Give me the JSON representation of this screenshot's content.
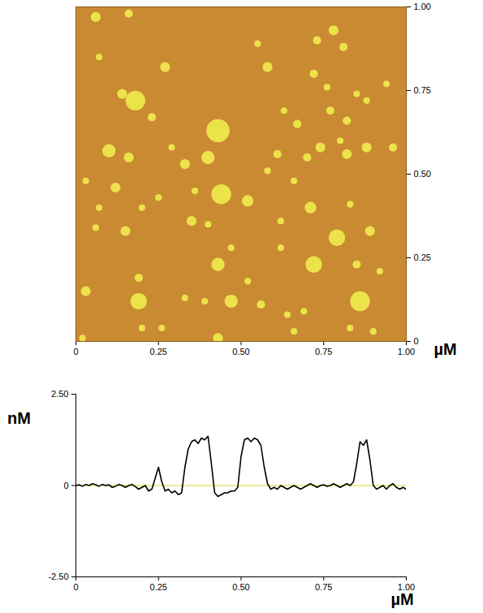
{
  "chart_data": [
    {
      "type": "scatter",
      "x_label": "µM",
      "color": "#ece24a",
      "xlim": [
        0,
        1
      ],
      "ylim": [
        0,
        1
      ],
      "xticks": [
        0,
        0.25,
        {
          "value": 0.5,
          "label": "0.50"
        },
        0.75,
        {
          "value": 1,
          "label": "1.00"
        }
      ],
      "yticks": [
        0,
        0.25,
        {
          "value": 0.5,
          "label": "0.50"
        },
        0.75,
        {
          "value": 1,
          "label": "1.00"
        }
      ],
      "x": [
        0.06,
        0.16,
        0.07,
        0.18,
        0.14,
        0.27,
        0.23,
        0.43,
        0.58,
        0.55,
        0.73,
        0.78,
        0.81,
        0.72,
        0.76,
        0.85,
        0.88,
        0.77,
        0.82,
        0.8,
        0.67,
        0.63,
        0.94,
        0.96,
        0.88,
        0.82,
        0.74,
        0.61,
        0.58,
        0.7,
        0.66,
        0.44,
        0.4,
        0.33,
        0.36,
        0.52,
        0.29,
        0.1,
        0.16,
        0.12,
        0.03,
        0.07,
        0.2,
        0.25,
        0.35,
        0.4,
        0.15,
        0.06,
        0.71,
        0.62,
        0.79,
        0.89,
        0.83,
        0.72,
        0.62,
        0.47,
        0.43,
        0.52,
        0.56,
        0.47,
        0.19,
        0.19,
        0.03,
        0.33,
        0.39,
        0.86,
        0.85,
        0.92,
        0.64,
        0.69,
        0.2,
        0.26,
        0.43,
        0.02,
        0.66,
        0.83,
        0.9
      ],
      "y": [
        0.97,
        0.98,
        0.85,
        0.72,
        0.74,
        0.82,
        0.67,
        0.63,
        0.82,
        0.89,
        0.9,
        0.93,
        0.88,
        0.8,
        0.76,
        0.74,
        0.72,
        0.69,
        0.66,
        0.6,
        0.65,
        0.69,
        0.77,
        0.58,
        0.58,
        0.56,
        0.58,
        0.56,
        0.51,
        0.55,
        0.48,
        0.44,
        0.55,
        0.53,
        0.45,
        0.42,
        0.58,
        0.57,
        0.55,
        0.46,
        0.48,
        0.4,
        0.4,
        0.43,
        0.36,
        0.35,
        0.33,
        0.34,
        0.4,
        0.36,
        0.31,
        0.33,
        0.41,
        0.23,
        0.28,
        0.28,
        0.23,
        0.18,
        0.11,
        0.12,
        0.12,
        0.19,
        0.15,
        0.13,
        0.12,
        0.12,
        0.23,
        0.21,
        0.08,
        0.09,
        0.04,
        0.04,
        0.01,
        0.01,
        0.03,
        0.04,
        0.03
      ],
      "sizes": [
        0.03,
        0.025,
        0.02,
        0.06,
        0.03,
        0.03,
        0.025,
        0.07,
        0.03,
        0.02,
        0.025,
        0.03,
        0.025,
        0.025,
        0.02,
        0.02,
        0.02,
        0.025,
        0.025,
        0.02,
        0.025,
        0.02,
        0.02,
        0.025,
        0.03,
        0.03,
        0.03,
        0.025,
        0.02,
        0.025,
        0.02,
        0.06,
        0.04,
        0.03,
        0.02,
        0.035,
        0.02,
        0.04,
        0.03,
        0.03,
        0.02,
        0.02,
        0.02,
        0.02,
        0.03,
        0.02,
        0.03,
        0.02,
        0.035,
        0.02,
        0.05,
        0.03,
        0.02,
        0.05,
        0.02,
        0.02,
        0.04,
        0.02,
        0.025,
        0.04,
        0.05,
        0.025,
        0.03,
        0.02,
        0.02,
        0.06,
        0.025,
        0.02,
        0.02,
        0.02,
        0.02,
        0.02,
        0.03,
        0.02,
        0.02,
        0.02,
        0.02
      ]
    },
    {
      "type": "line",
      "x_label": "µM",
      "y_label": "nM",
      "color": "#000000",
      "xlim": [
        0,
        1
      ],
      "ylim": [
        -2.5,
        2.5
      ],
      "xticks": [
        0,
        0.25,
        {
          "value": 0.5,
          "label": "0.50"
        },
        0.75,
        {
          "value": 1,
          "label": "1.00"
        }
      ],
      "yticks": [
        {
          "value": -2.5,
          "label": "-2.50"
        },
        0,
        {
          "value": 2.5,
          "label": "2.50"
        }
      ],
      "reference_line": {
        "value": 0,
        "color": "#e6e66a"
      },
      "x": [
        0,
        0.01,
        0.02,
        0.03,
        0.04,
        0.05,
        0.06,
        0.07,
        0.08,
        0.09,
        0.1,
        0.11,
        0.12,
        0.13,
        0.14,
        0.15,
        0.16,
        0.17,
        0.18,
        0.19,
        0.2,
        0.21,
        0.22,
        0.23,
        0.24,
        0.25,
        0.26,
        0.27,
        0.28,
        0.29,
        0.3,
        0.31,
        0.32,
        0.33,
        0.34,
        0.35,
        0.36,
        0.37,
        0.38,
        0.39,
        0.4,
        0.41,
        0.42,
        0.43,
        0.44,
        0.45,
        0.46,
        0.47,
        0.48,
        0.49,
        0.5,
        0.51,
        0.52,
        0.53,
        0.54,
        0.55,
        0.56,
        0.57,
        0.58,
        0.59,
        0.6,
        0.61,
        0.62,
        0.63,
        0.64,
        0.65,
        0.66,
        0.67,
        0.68,
        0.69,
        0.7,
        0.71,
        0.72,
        0.73,
        0.74,
        0.75,
        0.76,
        0.77,
        0.78,
        0.79,
        0.8,
        0.81,
        0.82,
        0.83,
        0.84,
        0.85,
        0.86,
        0.87,
        0.88,
        0.89,
        0.9,
        0.91,
        0.92,
        0.93,
        0.94,
        0.95,
        0.96,
        0.97,
        0.98,
        0.99,
        1
      ],
      "values": [
        0,
        0.02,
        -0.02,
        0.03,
        0,
        0.05,
        0.02,
        -0.02,
        0.03,
        0,
        0.02,
        -0.05,
        -0.02,
        0.03,
        0,
        -0.05,
        0,
        0.03,
        -0.03,
        -0.1,
        -0.05,
        0,
        -0.15,
        -0.1,
        0.2,
        0.5,
        0.1,
        -0.15,
        -0.1,
        -0.2,
        -0.15,
        -0.25,
        -0.2,
        0.5,
        1.0,
        1.2,
        1.25,
        1.15,
        1.3,
        1.25,
        1.35,
        0.6,
        -0.2,
        -0.3,
        -0.25,
        -0.2,
        -0.2,
        -0.15,
        -0.15,
        -0.05,
        0.8,
        1.25,
        1.3,
        1.2,
        1.3,
        1.25,
        1.1,
        0.5,
        0.05,
        -0.1,
        -0.05,
        -0.1,
        0,
        -0.05,
        -0.1,
        -0.05,
        0,
        -0.05,
        -0.1,
        -0.05,
        0,
        0.05,
        0,
        -0.05,
        0,
        0.02,
        -0.02,
        0,
        0.05,
        0,
        -0.05,
        0,
        0.05,
        0,
        0.1,
        0.6,
        1.2,
        1.1,
        1.25,
        0.7,
        0,
        -0.1,
        -0.05,
        0,
        -0.1,
        0,
        0.05,
        -0.05,
        -0.1,
        -0.05,
        -0.1
      ]
    }
  ]
}
